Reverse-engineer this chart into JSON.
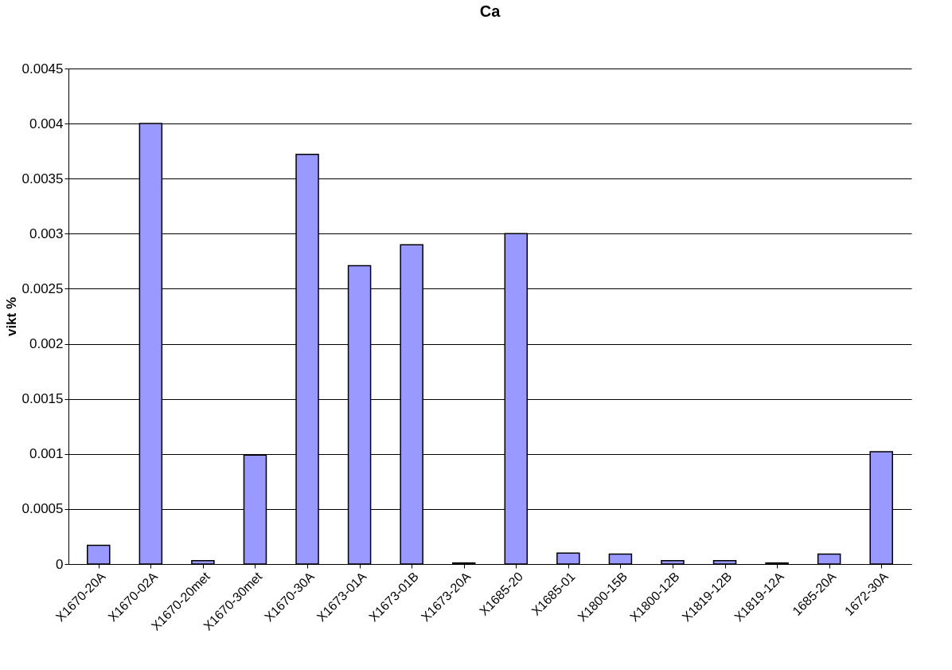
{
  "chart_data": {
    "type": "bar",
    "title": "Ca",
    "ylabel": "vikt %",
    "categories": [
      "X1670-20A",
      "X1670-02A",
      "X1670-20met",
      "X1670-30met",
      "X1670-30A",
      "X1673-01A",
      "X1673-01B",
      "X1673-20A",
      "X1685-20",
      "X1685-01",
      "X1800-15B",
      "X1800-12B",
      "X1819-12B",
      "X1819-12A",
      "1685-20A",
      "1672-30A"
    ],
    "values": [
      0.00017,
      0.004,
      3e-05,
      0.00099,
      0.00372,
      0.00271,
      0.0029,
      1e-05,
      0.003,
      0.0001,
      9e-05,
      3e-05,
      3e-05,
      1e-05,
      9e-05,
      0.00102
    ],
    "color": "#9999ff",
    "ylim": [
      0,
      0.0045
    ],
    "yticks": [
      0,
      0.0005,
      0.001,
      0.0015,
      0.002,
      0.0025,
      0.003,
      0.0035,
      0.004,
      0.0045
    ],
    "grid": "y"
  }
}
